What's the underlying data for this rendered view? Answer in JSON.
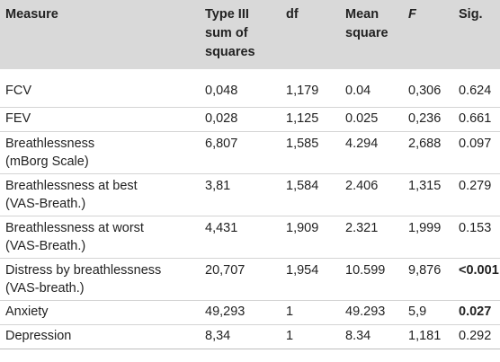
{
  "table": {
    "headers": {
      "measure": "Measure",
      "sum_of_squares": "Type III sum of squares",
      "df": "df",
      "mean_square": "Mean square",
      "f": "F",
      "sig": "Sig."
    },
    "rows": [
      {
        "measure": "FCV",
        "measure_sub": "",
        "ss": "0,048",
        "df": "1,179",
        "ms": "0.04",
        "f": "0,306",
        "sig": "0.624",
        "sig_bold": false
      },
      {
        "measure": "FEV",
        "measure_sub": "",
        "ss": "0,028",
        "df": "1,125",
        "ms": "0.025",
        "f": "0,236",
        "sig": "0.661",
        "sig_bold": false
      },
      {
        "measure": "Breathlessness",
        "measure_sub": "(mBorg Scale)",
        "ss": "6,807",
        "df": "1,585",
        "ms": "4.294",
        "f": "2,688",
        "sig": "0.097",
        "sig_bold": false
      },
      {
        "measure": "Breathlessness at best",
        "measure_sub": "(VAS-Breath.)",
        "ss": "3,81",
        "df": "1,584",
        "ms": "2.406",
        "f": "1,315",
        "sig": "0.279",
        "sig_bold": false
      },
      {
        "measure": "Breathlessness at worst",
        "measure_sub": "(VAS-Breath.)",
        "ss": "4,431",
        "df": "1,909",
        "ms": "2.321",
        "f": "1,999",
        "sig": "0.153",
        "sig_bold": false
      },
      {
        "measure": "Distress by breathlessness",
        "measure_sub": "(VAS-breath.)",
        "ss": "20,707",
        "df": "1,954",
        "ms": "10.599",
        "f": "9,876",
        "sig": "<0.001",
        "sig_bold": true
      },
      {
        "measure": "Anxiety",
        "measure_sub": "",
        "ss": "49,293",
        "df": "1",
        "ms": "49.293",
        "f": "5,9",
        "sig": "0.027",
        "sig_bold": true
      },
      {
        "measure": "Depression",
        "measure_sub": "",
        "ss": "8,34",
        "df": "1",
        "ms": "8.34",
        "f": "1,181",
        "sig": "0.292",
        "sig_bold": false
      }
    ]
  },
  "colors": {
    "header_background": "#d9d9d9",
    "text": "#222222",
    "row_divider": "#d4d4d4"
  }
}
